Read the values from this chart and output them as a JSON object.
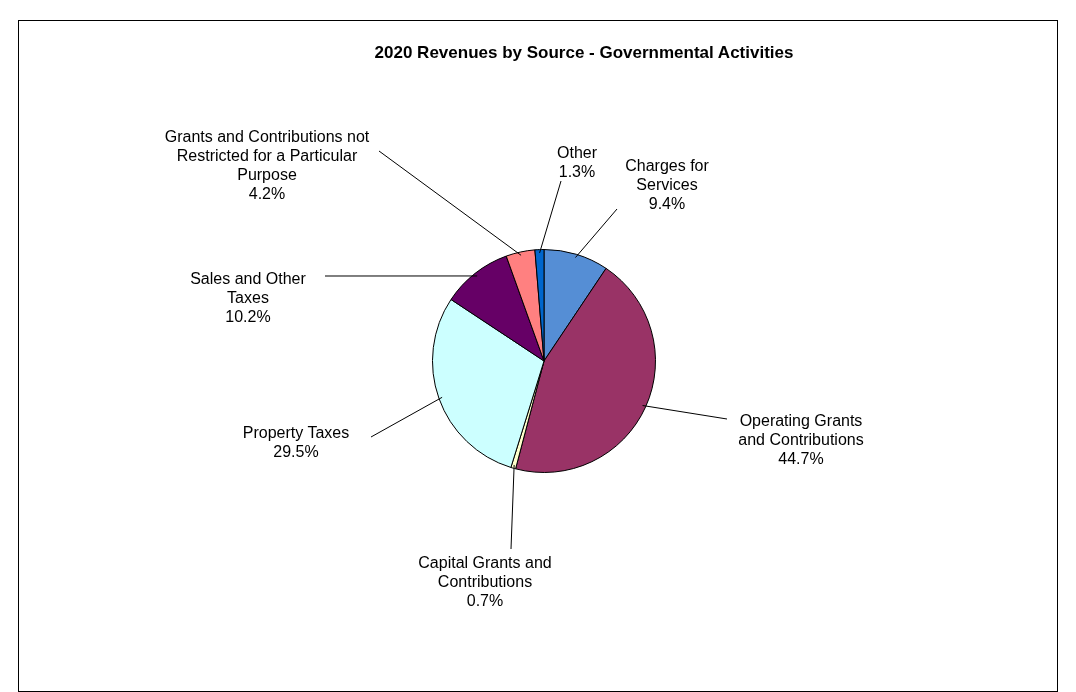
{
  "chart_data": {
    "type": "pie",
    "title": "2020 Revenues by Source - Governmental Activities",
    "categories": [
      "Charges for Services",
      "Operating Grants and Contributions",
      "Capital Grants and Contributions",
      "Property Taxes",
      "Sales and Other Taxes",
      "Grants and Contributions not Restricted for a Particular Purpose",
      "Other"
    ],
    "values": [
      9.4,
      44.7,
      0.7,
      29.5,
      10.2,
      4.2,
      1.3
    ],
    "value_labels": [
      "9.4%",
      "44.7%",
      "0.7%",
      "29.5%",
      "10.2%",
      "4.2%",
      "1.3%"
    ],
    "colors": [
      "#558ed5",
      "#993366",
      "#ffffcc",
      "#ccffff",
      "#660066",
      "#ff8080",
      "#0066cc"
    ],
    "legend": false
  }
}
